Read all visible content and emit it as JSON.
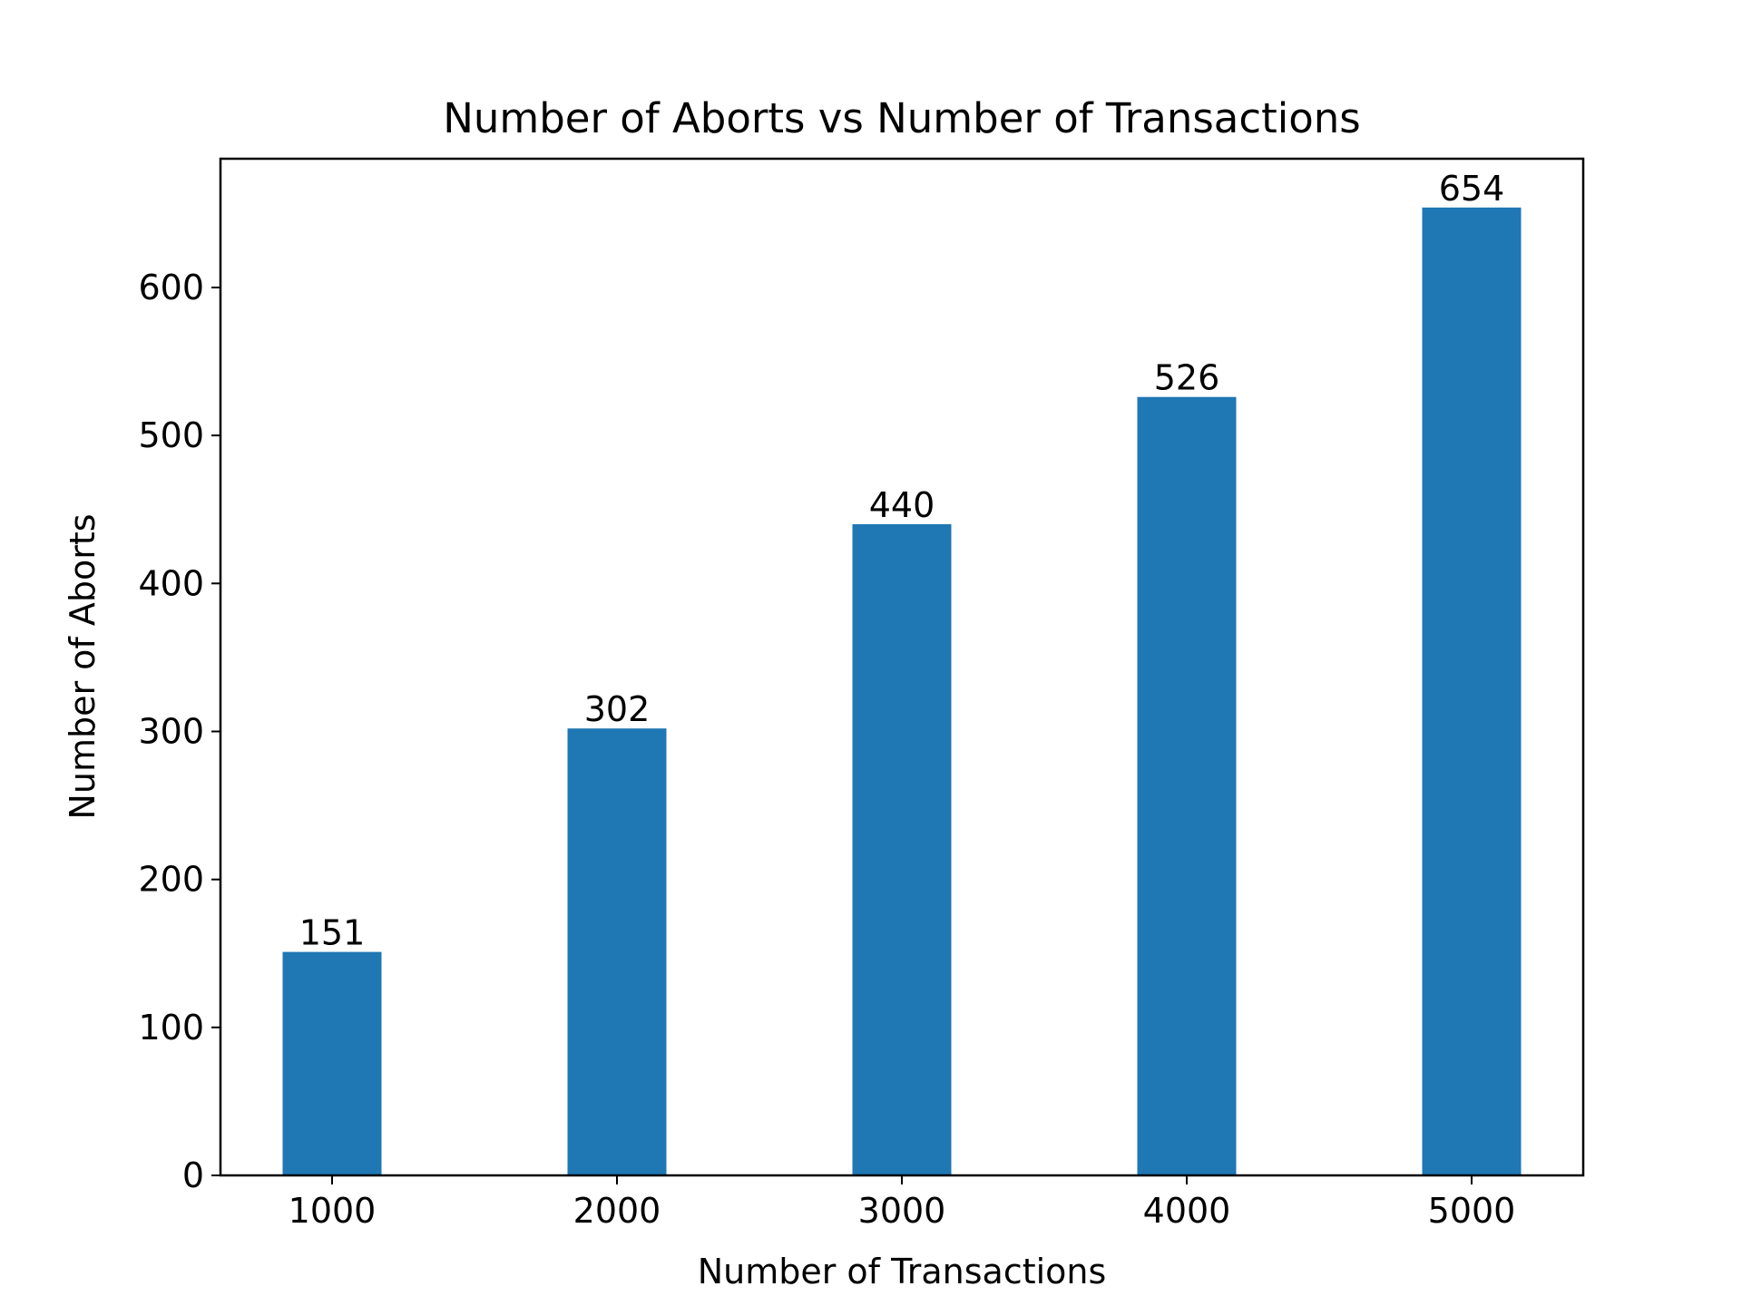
{
  "chart_data": {
    "type": "bar",
    "title": "Number of Aborts vs Number of Transactions",
    "xlabel": "Number of Transactions",
    "ylabel": "Number of Aborts",
    "categories": [
      "1000",
      "2000",
      "3000",
      "4000",
      "5000"
    ],
    "values": [
      151,
      302,
      440,
      526,
      654
    ],
    "data_labels": [
      "151",
      "302",
      "440",
      "526",
      "654"
    ],
    "yticks": [
      0,
      100,
      200,
      300,
      400,
      500,
      600
    ],
    "ytick_labels": [
      "0",
      "100",
      "200",
      "300",
      "400",
      "500",
      "600"
    ],
    "ylim": [
      0,
      687
    ],
    "grid": false,
    "bar_color": "#1f77b4"
  }
}
